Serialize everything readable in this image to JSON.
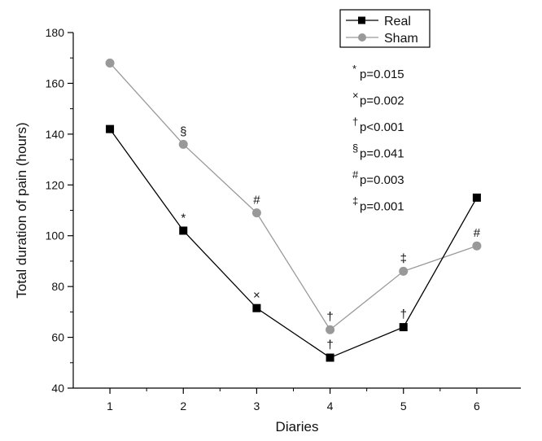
{
  "chart_data": {
    "type": "line",
    "title": "",
    "xlabel": "Diaries",
    "ylabel": "Total duration of pain (hours)",
    "x": [
      1,
      2,
      3,
      4,
      5,
      6
    ],
    "xlim": [
      0.5,
      6.6
    ],
    "ylim": [
      40,
      180
    ],
    "yticks": [
      40,
      60,
      80,
      100,
      120,
      140,
      160,
      180
    ],
    "xticks": [
      1,
      2,
      3,
      4,
      5,
      6
    ],
    "grid": false,
    "legend_position": "top-right",
    "series": [
      {
        "name": "Real",
        "color": "#000000",
        "marker": "square",
        "values": [
          142,
          102,
          71.5,
          52,
          64,
          115
        ],
        "annotations": [
          "",
          "*",
          "×",
          "†",
          "†",
          ""
        ]
      },
      {
        "name": "Sham",
        "color": "#999999",
        "marker": "circle",
        "values": [
          168,
          136,
          109,
          63,
          86,
          96
        ],
        "annotations": [
          "",
          "§",
          "#",
          "†",
          "‡",
          "#"
        ]
      }
    ],
    "notes": [
      {
        "symbol": "*",
        "text": "p=0.015"
      },
      {
        "symbol": "×",
        "text": "p=0.002"
      },
      {
        "symbol": "†",
        "text": "p<0.001"
      },
      {
        "symbol": "§",
        "text": "p=0.041"
      },
      {
        "symbol": "#",
        "text": "p=0.003"
      },
      {
        "symbol": "‡",
        "text": "p=0.001"
      }
    ]
  }
}
